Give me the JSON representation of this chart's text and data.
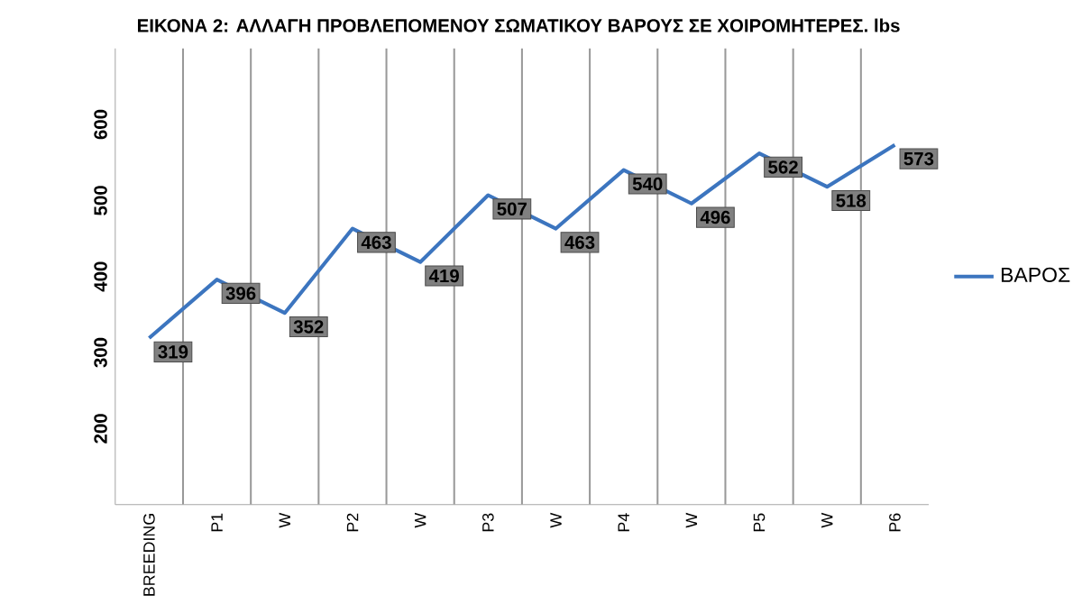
{
  "chart_data": {
    "type": "line",
    "title": "ΕΙΚΟΝΑ 2: ΑΛΛΑΓΗ ΠΡΟΒΛΕΠΟΜΕΝΟΥ ΣΩΜΑΤΙΚΟΥ ΒΑΡΟΥΣ ΣΕ ΧΟΙΡΟΜΗΤΕΡΕΣ. lbs",
    "categories": [
      "BREEDING",
      "P1",
      "W",
      "P2",
      "W",
      "P3",
      "W",
      "P4",
      "W",
      "P5",
      "W",
      "P6"
    ],
    "series": [
      {
        "name": "ΒΑΡΟΣ",
        "color": "#3c75bf",
        "values": [
          319,
          396,
          352,
          463,
          419,
          507,
          463,
          540,
          496,
          562,
          518,
          573
        ]
      }
    ],
    "ylim": [
      100,
      700
    ],
    "yticks": [
      200,
      300,
      400,
      500,
      600
    ],
    "grid": "x",
    "legend": "right",
    "data_labels": true,
    "marker": "none"
  }
}
